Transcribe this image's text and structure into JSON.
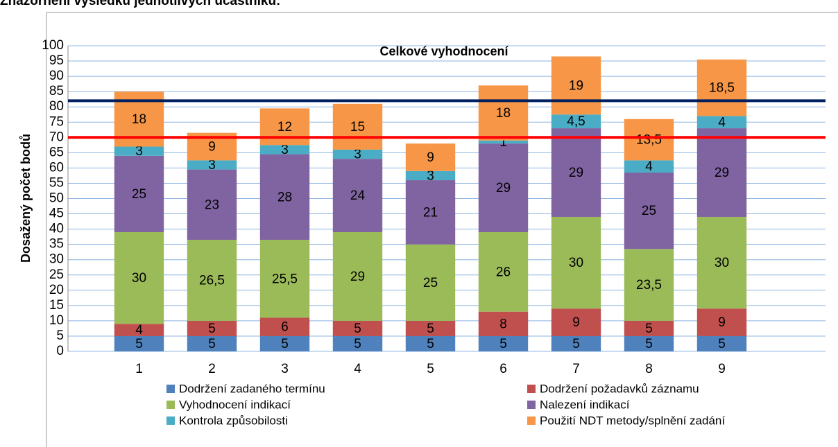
{
  "heading": "Znázornění výsledků jednotlivých účastníků:",
  "chart_data": {
    "type": "stacked_bar",
    "title": "Celkové vyhodnocení",
    "y_label": "Dosažený počet bodů",
    "categories": [
      "1",
      "2",
      "3",
      "4",
      "5",
      "6",
      "7",
      "8",
      "9"
    ],
    "series": [
      {
        "name": "Dodržení zadaného termínu",
        "color": "#4f81bd",
        "values": [
          5,
          5,
          5,
          5,
          5,
          5,
          5,
          5,
          5
        ]
      },
      {
        "name": "Dodržení požadavků záznamu",
        "color": "#c0504d",
        "values": [
          4,
          5,
          6,
          5,
          5,
          8,
          9,
          5,
          9
        ]
      },
      {
        "name": "Vyhodnocení indikací",
        "color": "#9bbb59",
        "values": [
          30,
          26.5,
          25.5,
          29,
          25,
          26,
          30,
          23.5,
          30
        ],
        "value_labels": [
          "30",
          "26,5",
          "25,5",
          "29",
          "25",
          "26",
          "30",
          "23,5",
          "30"
        ]
      },
      {
        "name": "Nalezení indikací",
        "color": "#8064a2",
        "values": [
          25,
          23,
          28,
          24,
          21,
          29,
          29,
          25,
          29
        ]
      },
      {
        "name": "Kontrola způsobilosti",
        "color": "#4bacc6",
        "values": [
          3,
          3,
          3,
          3,
          3,
          1,
          4.5,
          4,
          4
        ],
        "value_labels": [
          "3",
          "3",
          "3",
          "3",
          "3",
          "1",
          "4,5",
          "4",
          "4"
        ]
      },
      {
        "name": "Použití NDT metody/splnění zadání",
        "color": "#f79646",
        "values": [
          18,
          9,
          12,
          15,
          9,
          18,
          19,
          13.5,
          18.5
        ],
        "value_labels": [
          "18",
          "9",
          "12",
          "15",
          "9",
          "18",
          "19",
          "13,5",
          "18,5"
        ]
      }
    ],
    "ylim": [
      0,
      100
    ],
    "yticks": [
      0,
      5,
      10,
      15,
      20,
      25,
      30,
      35,
      40,
      45,
      50,
      55,
      60,
      65,
      70,
      75,
      80,
      85,
      90,
      95,
      100
    ],
    "grid": true,
    "grid_color": "#8eb4e3",
    "reference_lines": [
      {
        "value": 82,
        "color": "#002060"
      },
      {
        "value": 70,
        "color": "#ff0000"
      }
    ],
    "legend": "bottom"
  }
}
